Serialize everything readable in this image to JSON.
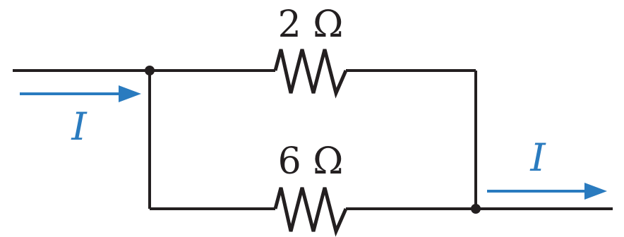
{
  "resistors": [
    {
      "value": "2 Ω",
      "branch": "top"
    },
    {
      "value": "6 Ω",
      "branch": "bottom"
    }
  ],
  "currents": [
    {
      "label": "I",
      "position": "input"
    },
    {
      "label": "I",
      "position": "output"
    }
  ],
  "colors": {
    "wire": "#231f20",
    "current_arrow": "#2a7bbf"
  }
}
